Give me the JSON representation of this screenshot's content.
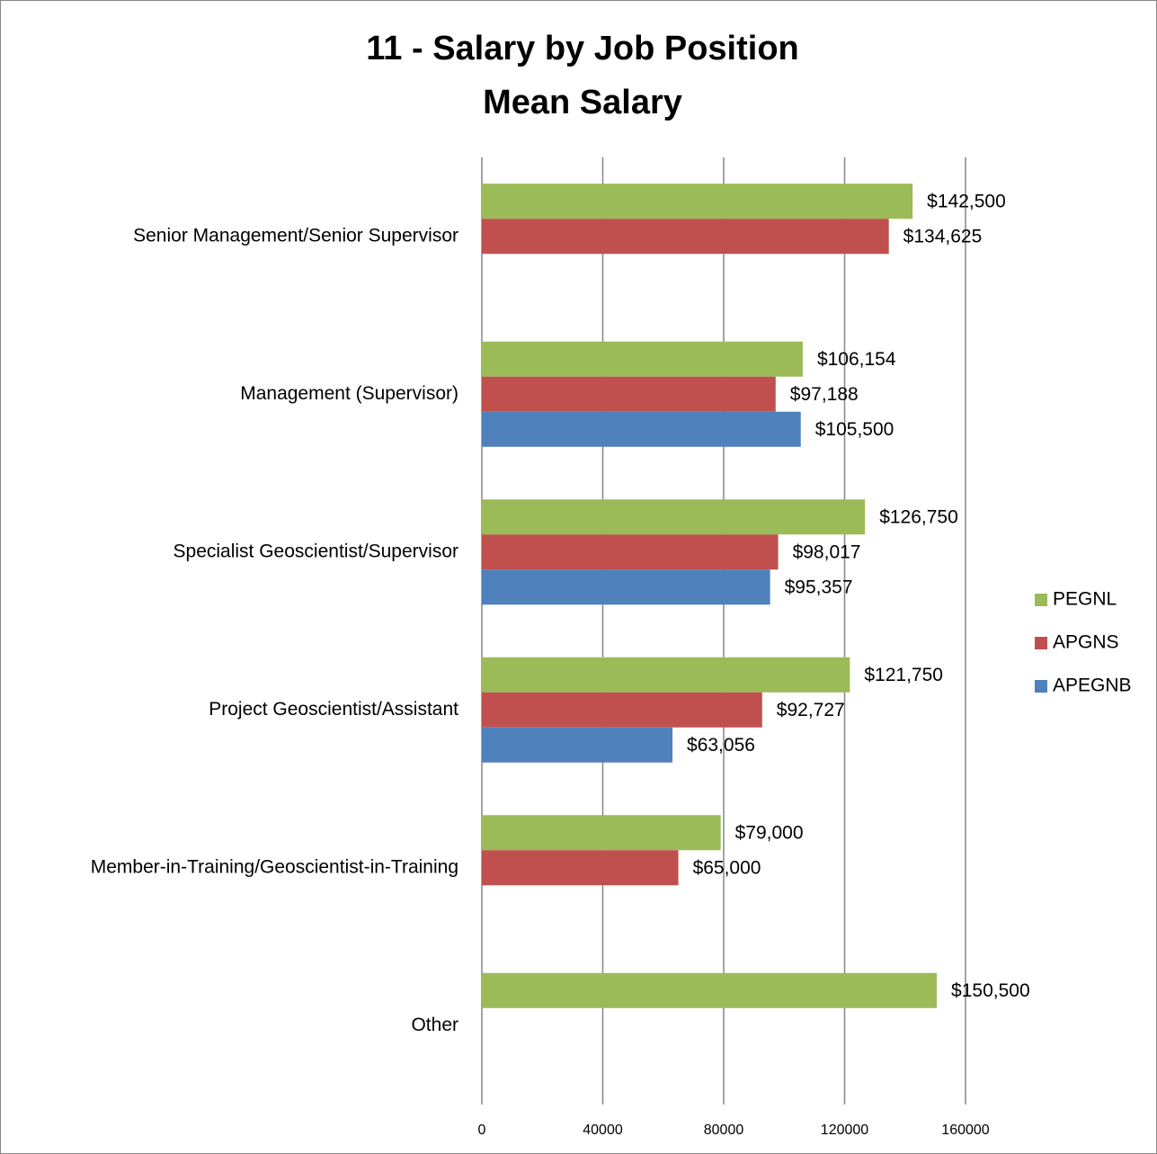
{
  "chart_data": {
    "type": "hbar",
    "title": "11 - Salary by Job Position",
    "subtitle": "Mean Salary",
    "categories": [
      "Senior Management/Senior Supervisor",
      "Management (Supervisor)",
      "Specialist Geoscientist/Supervisor",
      "Project Geoscientist/Assistant",
      "Member-in-Training/Geoscientist-in-Training",
      "Other"
    ],
    "series": [
      {
        "name": "PEGNL",
        "color": "#9bbb59",
        "values": [
          142500,
          106154,
          126750,
          121750,
          79000,
          150500
        ],
        "value_labels": [
          "$142,500",
          "$106,154",
          "$126,750",
          "$121,750",
          "$79,000",
          "$150,500"
        ]
      },
      {
        "name": "APGNS",
        "color": "#c0504d",
        "values": [
          134625,
          97188,
          98017,
          92727,
          65000,
          null
        ],
        "value_labels": [
          "$134,625",
          "$97,188",
          "$98,017",
          "$92,727",
          "$65,000",
          null
        ]
      },
      {
        "name": "APEGNB",
        "color": "#4f81bd",
        "values": [
          null,
          105500,
          95357,
          63056,
          null,
          null
        ],
        "value_labels": [
          null,
          "$105,500",
          "$95,357",
          "$63,056",
          null,
          null
        ]
      }
    ],
    "xlim": [
      0,
      160000
    ],
    "xticks": [
      0,
      40000,
      80000,
      120000,
      160000
    ],
    "grid": true,
    "legend": "right"
  }
}
